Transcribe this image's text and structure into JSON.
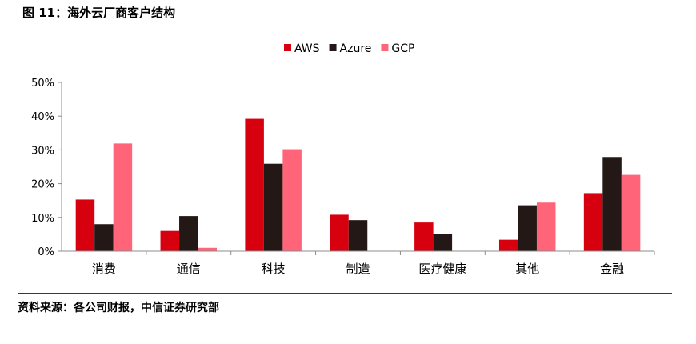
{
  "header": {
    "title": "图 11：海外云厂商客户结构"
  },
  "footer": {
    "source": "资料来源：各公司财报，中信证券研究部"
  },
  "chart_data": {
    "type": "bar",
    "categories": [
      "消费",
      "通信",
      "科技",
      "制造",
      "医疗健康",
      "其他",
      "金融"
    ],
    "series": [
      {
        "name": "AWS",
        "color": "#d7000f",
        "values": [
          15.3,
          6.0,
          39.2,
          10.8,
          8.5,
          3.4,
          17.2
        ]
      },
      {
        "name": "Azure",
        "color": "#231815",
        "values": [
          8.0,
          10.4,
          25.9,
          9.2,
          5.1,
          13.6,
          27.9
        ]
      },
      {
        "name": "GCP",
        "color": "#ff6479",
        "values": [
          31.9,
          1.0,
          30.2,
          0,
          0,
          14.4,
          22.6
        ]
      }
    ],
    "ylim": [
      0,
      50
    ],
    "yticks": [
      0,
      10,
      20,
      30,
      40,
      50
    ],
    "ytick_labels": [
      "0%",
      "10%",
      "20%",
      "30%",
      "40%",
      "50%"
    ],
    "legend_position": "top-center",
    "grid": false
  }
}
